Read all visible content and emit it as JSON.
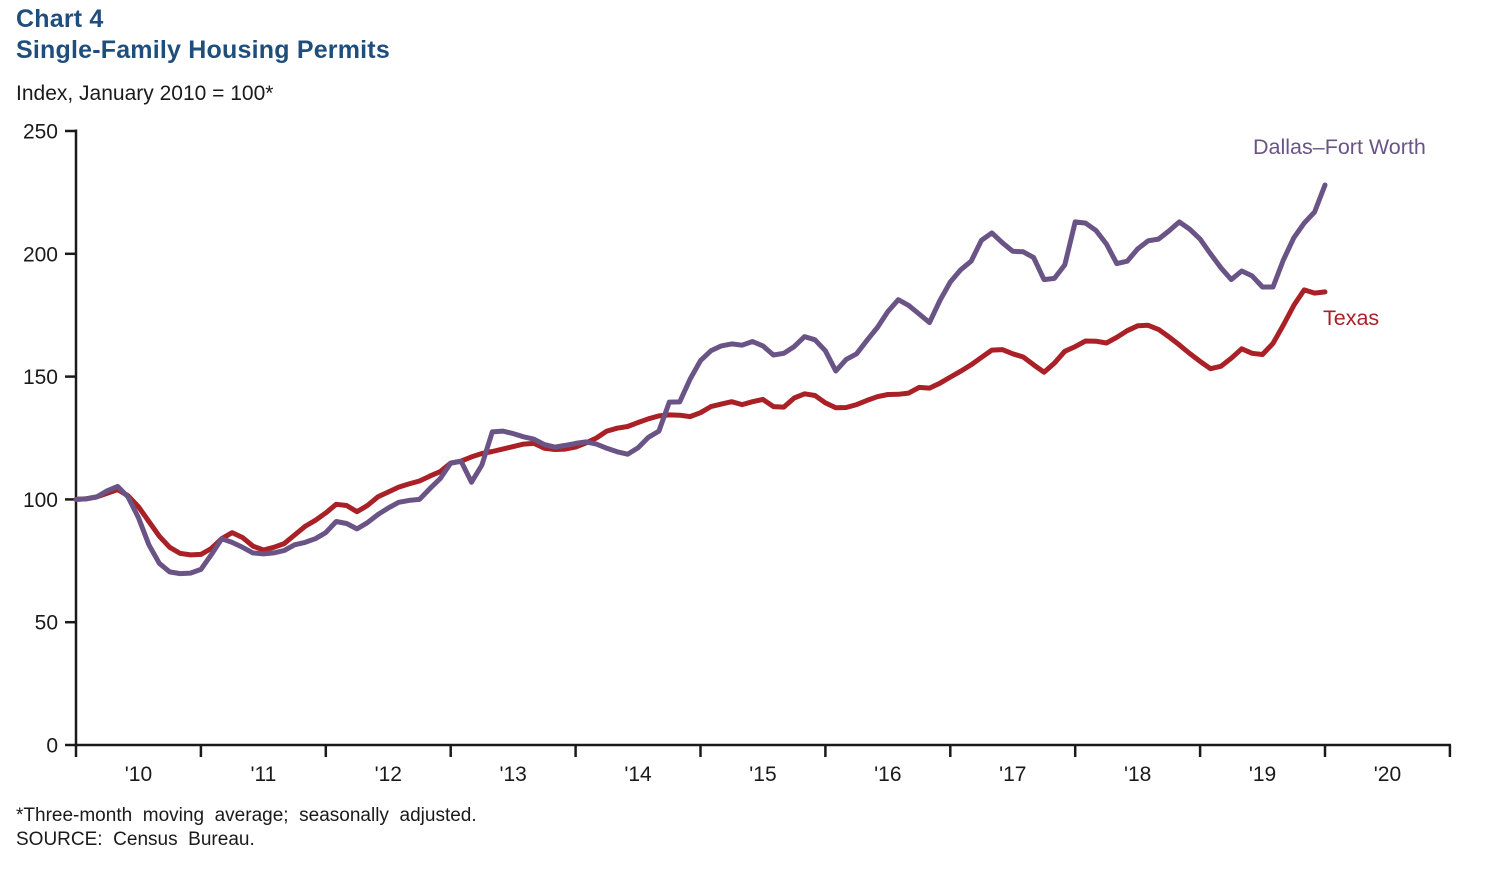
{
  "chart_data": {
    "type": "line",
    "title_line1": "Chart 4",
    "title_line2": "Single-Family Housing Permits",
    "axis_unit_label": "Index, January 2010 = 100*",
    "x_start": "2010-01",
    "frequency": "monthly",
    "x_tick_labels": [
      "'10",
      "'11",
      "'12",
      "'13",
      "'14",
      "'15",
      "'16",
      "'17",
      "'18",
      "'19",
      "'20"
    ],
    "y_tick_labels": [
      "0",
      "50",
      "100",
      "150",
      "200",
      "250"
    ],
    "ylim": [
      0,
      250
    ],
    "grid": false,
    "legend": "inline-labels",
    "series": [
      {
        "name": "Dallas–Fort Worth",
        "color": "#6a5486",
        "values": [
          100,
          100.2,
          101,
          103.5,
          105.3,
          101,
          92.5,
          81.5,
          74,
          70.5,
          69.8,
          70,
          71.5,
          77.5,
          84,
          82.5,
          80.5,
          78.2,
          77.8,
          78.2,
          79.2,
          81.5,
          82.5,
          84,
          86.5,
          91,
          90.2,
          88,
          90.5,
          93.8,
          96.5,
          98.8,
          99.6,
          100,
          104.4,
          108.5,
          114.8,
          115.5,
          107,
          114,
          127.5,
          127.8,
          126.8,
          125.5,
          124.5,
          122.3,
          121.3,
          122,
          122.8,
          123.4,
          122.5,
          120.8,
          119.4,
          118.4,
          121,
          125.3,
          127.8,
          139.6,
          139.7,
          149,
          156.5,
          160.5,
          162.5,
          163.3,
          162.8,
          164.3,
          162.5,
          158.8,
          159.5,
          162.2,
          166.3,
          165,
          160.5,
          152.3,
          157,
          159.3,
          164.8,
          170,
          176.5,
          181.3,
          179,
          175.5,
          172,
          181,
          188.5,
          193.5,
          197,
          205.5,
          208.5,
          204.5,
          201,
          200.8,
          198.5,
          189.5,
          190,
          195.5,
          213,
          212.5,
          209.5,
          204,
          196,
          197,
          202,
          205.3,
          206,
          209.3,
          213,
          210,
          206,
          200,
          194.3,
          189.5,
          193,
          191,
          186.5,
          186.5,
          197.5,
          206.5,
          212.5,
          217,
          228
        ]
      },
      {
        "name": "Texas",
        "color": "#a92127",
        "values": [
          100,
          100.3,
          101,
          102.5,
          104,
          101.5,
          97,
          91,
          85,
          80.5,
          78,
          77.4,
          77.6,
          80,
          84,
          86.5,
          84.5,
          81,
          79.4,
          80.5,
          82,
          85.5,
          89,
          91.5,
          94.5,
          98,
          97.5,
          95,
          97.5,
          101,
          103,
          105,
          106.3,
          107.5,
          109.5,
          111.3,
          114.8,
          115.6,
          117.3,
          118.7,
          119.5,
          120.5,
          121.5,
          122.5,
          122.8,
          120.8,
          120.3,
          120.5,
          121.3,
          123,
          125,
          127.8,
          129,
          129.7,
          131.3,
          132.8,
          134,
          134.4,
          134.3,
          133.7,
          135.3,
          137.8,
          138.8,
          139.8,
          138.6,
          139.8,
          140.7,
          137.8,
          137.6,
          141.3,
          143,
          142.3,
          139.3,
          137.3,
          137.4,
          138.6,
          140.3,
          141.8,
          142.7,
          142.8,
          143.3,
          145.6,
          145.3,
          147.3,
          149.8,
          152.2,
          154.8,
          157.8,
          160.8,
          161,
          159.3,
          158,
          154.8,
          151.8,
          155.5,
          160.3,
          162.2,
          164.5,
          164.4,
          163.7,
          166,
          168.7,
          170.7,
          170.9,
          169.2,
          166.2,
          162.9,
          159.4,
          156.2,
          153.2,
          154.2,
          157.5,
          161.3,
          159.5,
          159,
          163.5,
          171,
          179,
          185.3,
          184,
          184.5
        ]
      }
    ],
    "footnote": "*Three-month moving average; seasonally adjusted.",
    "source": "SOURCE: Census Bureau."
  }
}
